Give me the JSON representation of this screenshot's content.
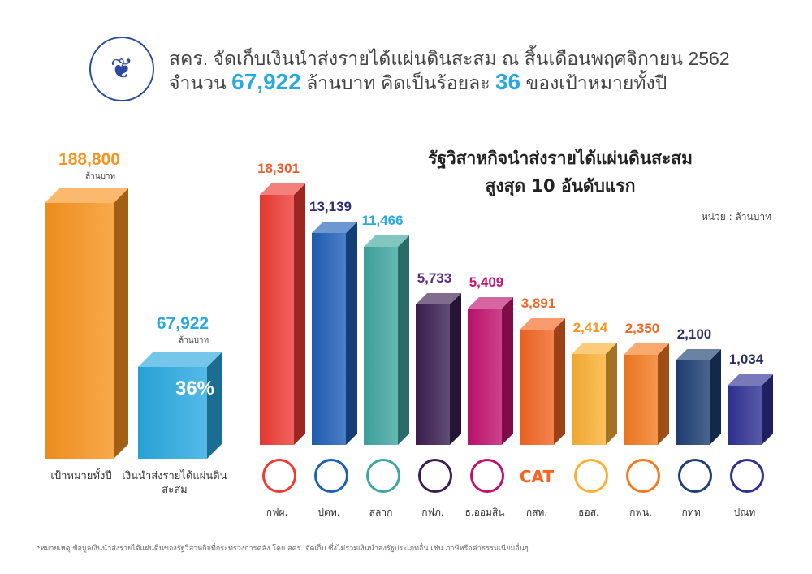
{
  "header": {
    "line1": "สคร. จัดเก็บเงินนำส่งรายได้แผ่นดินสะสม ณ สิ้นเดือนพฤศจิกายน 2562",
    "line2_pre": "จำนวน",
    "line2_amount": "67,922",
    "line2_mid": "ล้านบาท คิดเป็นร้อยละ",
    "line2_pct": "36",
    "line2_post": "ของเป้าหมายทั้งปี"
  },
  "footnote": "*หมายเหตุ ข้อมูลเงินนำส่งรายได้แผ่นดินของรัฐวิสาหกิจที่กระทรวงการคลัง โดย สคร. จัดเก็บ ซึ่งไม่รวมเงินนำส่งรัฐประเภทอื่น เช่น ภาษีหรือค่าธรรมเนียมอื่นๆ",
  "chart_data": [
    {
      "type": "bar",
      "categories": [
        "เป้าหมายทั้งปี",
        "เงินนำส่งรายได้แผ่นดินสะสม"
      ],
      "values": [
        188800,
        67922
      ],
      "value_labels": [
        "188,800",
        "67,922"
      ],
      "unit_label": "ล้านบาท",
      "percent_label": "36%",
      "colors": [
        "#f7931e",
        "#29a9e0"
      ]
    },
    {
      "type": "bar",
      "title_line1": "รัฐวิสาหกิจนำส่งรายได้แผ่นดินสะสม",
      "title_line2": "สูงสุด 10 อันดับแรก",
      "unit": "หน่วย : ล้านบาท",
      "categories": [
        "กฟผ.",
        "ปตท.",
        "สลาก",
        "กฟภ.",
        "ธ.ออมสิน",
        "กสท.",
        "ธอส.",
        "กฟน.",
        "กทท.",
        "ปณท"
      ],
      "values": [
        18301,
        13139,
        11466,
        5733,
        5409,
        3891,
        2414,
        2350,
        2100,
        1034
      ],
      "value_labels": [
        "18,301",
        "13,139",
        "11,466",
        "5,733",
        "5,409",
        "3,891",
        "2,414",
        "2,350",
        "2,100",
        "1,034"
      ],
      "colors": [
        "#ee3b34",
        "#1f5fb8",
        "#3fa6a0",
        "#3b1f4f",
        "#c0126e",
        "#f26522",
        "#fbb034",
        "#f47a20",
        "#1d3f72",
        "#2e3192"
      ],
      "label_colors": [
        "#f05a28",
        "#2b2d6e",
        "#29a9e0",
        "#5b2c83",
        "#c2187a",
        "#f26522",
        "#f7941d",
        "#f26522",
        "#2b2d6e",
        "#2b2d6e"
      ],
      "logo_icons": [
        "egat-logo",
        "ptt-logo",
        "glo-logo",
        "pea-logo",
        "gsb-logo",
        "cat-logo",
        "ghb-logo",
        "mea-logo",
        "pat-logo",
        "thailand-post-logo"
      ],
      "logo_text": [
        "",
        "",
        "",
        "",
        "",
        "CAT",
        "",
        "",
        "",
        ""
      ]
    }
  ]
}
